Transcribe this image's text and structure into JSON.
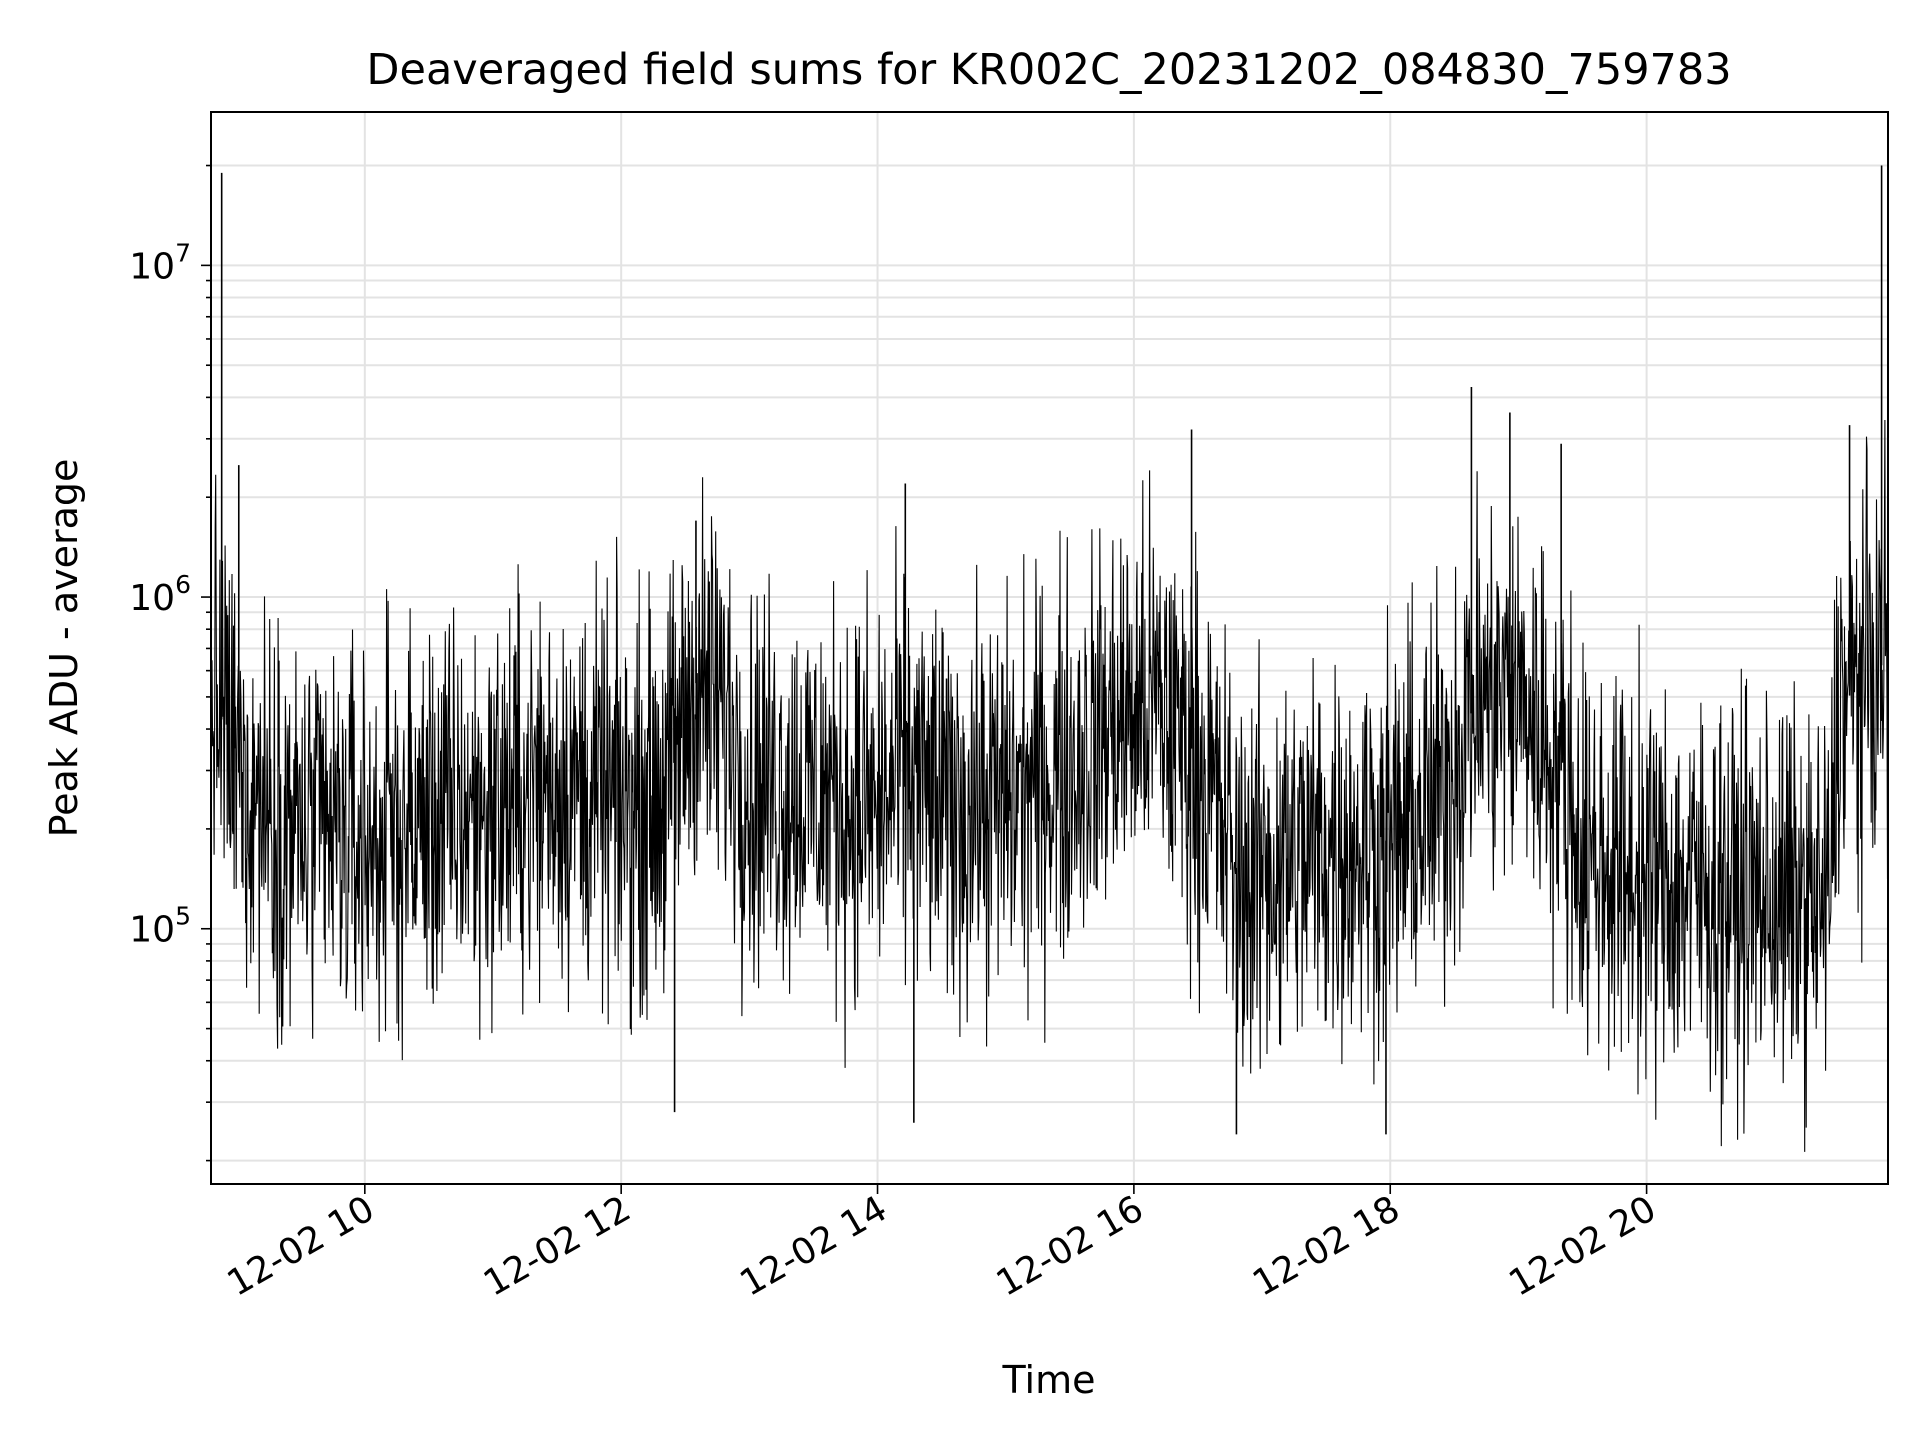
{
  "chart_data": {
    "type": "line",
    "title": "Deaveraged field sums for KR002C_20231202_084830_759783",
    "xlabel": "Time",
    "ylabel": "Peak ADU - average",
    "x_start": "2023-12-02 08:48",
    "x_end": "2023-12-02 21:53",
    "x_ticks": [
      "12-02 10",
      "12-02 12",
      "12-02 14",
      "12-02 16",
      "12-02 18",
      "12-02 20"
    ],
    "y_scale": "log",
    "ylim": [
      17000,
      29000000
    ],
    "y_ticks": [
      {
        "value": 100000,
        "base": "10",
        "exponent": "5"
      },
      {
        "value": 1000000,
        "base": "10",
        "exponent": "6"
      },
      {
        "value": 10000000,
        "base": "10",
        "exponent": "7"
      }
    ],
    "grid": true,
    "grid_minor": true,
    "line_color": "#000000",
    "grid_color": "#e3e3e3",
    "series": [
      {
        "x_time": [
          "08:48",
          "09:00",
          "09:30",
          "10:00",
          "10:30",
          "11:00",
          "11:30",
          "12:00",
          "12:20",
          "12:35",
          "12:50",
          "13:00",
          "13:30",
          "14:00",
          "14:15",
          "14:30",
          "15:00",
          "15:30",
          "15:50",
          "16:10",
          "16:30",
          "16:50",
          "17:00",
          "17:30",
          "18:00",
          "18:20",
          "18:40",
          "19:00",
          "19:20",
          "19:30",
          "20:00",
          "20:30",
          "21:00",
          "21:25",
          "21:30",
          "21:53"
        ],
        "y_level": [
          550000,
          300000,
          190000,
          180000,
          210000,
          230000,
          280000,
          230000,
          260000,
          550000,
          420000,
          280000,
          260000,
          230000,
          300000,
          230000,
          240000,
          310000,
          420000,
          480000,
          330000,
          140000,
          150000,
          175000,
          185000,
          230000,
          480000,
          520000,
          300000,
          170000,
          140000,
          130000,
          125000,
          115000,
          470000,
          650000
        ]
      }
    ],
    "spikes": [
      {
        "x_time": "08:53",
        "y": 19000000
      },
      {
        "x_time": "09:01",
        "y": 2500000
      },
      {
        "x_time": "12:35",
        "y": 1700000
      },
      {
        "x_time": "14:13",
        "y": 2200000
      },
      {
        "x_time": "16:27",
        "y": 3200000
      },
      {
        "x_time": "18:38",
        "y": 4300000
      },
      {
        "x_time": "18:56",
        "y": 3600000
      },
      {
        "x_time": "19:20",
        "y": 2900000
      },
      {
        "x_time": "21:35",
        "y": 3300000
      },
      {
        "x_time": "21:50",
        "y": 20000000
      },
      {
        "x_time": "12:25",
        "y": 28000
      },
      {
        "x_time": "14:17",
        "y": 26000
      },
      {
        "x_time": "16:48",
        "y": 24000
      },
      {
        "x_time": "17:58",
        "y": 24000
      }
    ]
  }
}
